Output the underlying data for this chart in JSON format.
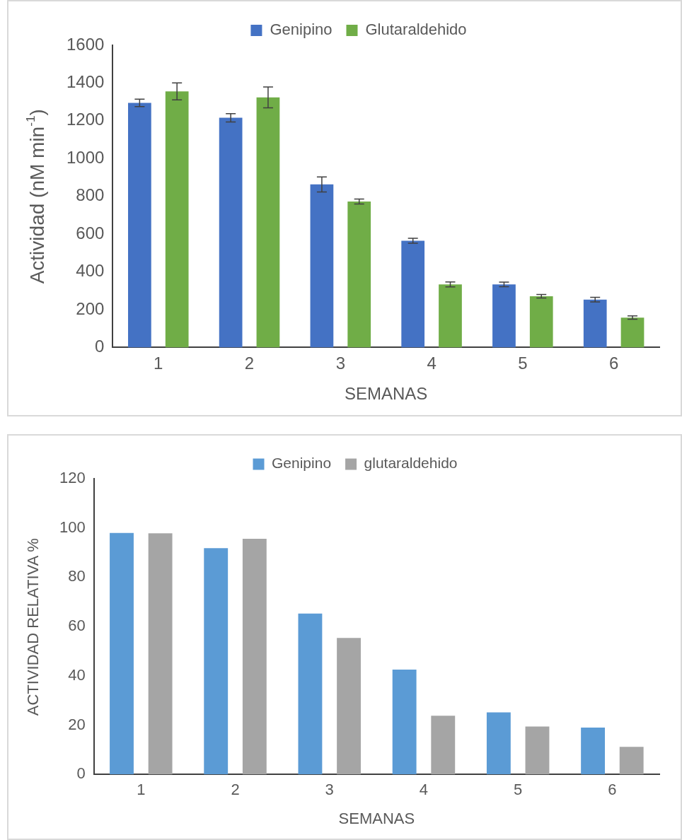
{
  "chart_data": [
    {
      "type": "bar",
      "categories": [
        "1",
        "2",
        "3",
        "4",
        "5",
        "6"
      ],
      "xlabel": "SEMANAS",
      "ylabel": "Actividad (nM min$^{-1}$)",
      "ylim": [
        0,
        1600
      ],
      "yticks": [
        0,
        200,
        400,
        600,
        800,
        1000,
        1200,
        1400,
        1600
      ],
      "grid": false,
      "legend": "top",
      "series": [
        {
          "name": "Genipino",
          "color": "#4472c4",
          "values": [
            1295,
            1216,
            863,
            565,
            334,
            253
          ],
          "errors": [
            20,
            22,
            40,
            13,
            12,
            12
          ]
        },
        {
          "name": "Glutaraldehido",
          "color": "#70ad47",
          "values": [
            1356,
            1324,
            773,
            334,
            271,
            158
          ],
          "errors": [
            45,
            55,
            13,
            13,
            9,
            9
          ]
        }
      ]
    },
    {
      "type": "bar",
      "categories": [
        "1",
        "2",
        "3",
        "4",
        "5",
        "6"
      ],
      "xlabel": "SEMANAS",
      "ylabel": "ACTIVIDAD RELATIVA %",
      "ylim": [
        0,
        120
      ],
      "yticks": [
        0,
        20,
        40,
        60,
        80,
        100,
        120
      ],
      "grid": false,
      "legend": "top",
      "series": [
        {
          "name": "Genipino",
          "color": "#5b9bd5",
          "values": [
            98,
            91.8,
            65.3,
            42.5,
            25.2,
            19
          ]
        },
        {
          "name": "glutaraldehido",
          "color": "#a5a5a5",
          "values": [
            97.8,
            95.6,
            55.4,
            23.8,
            19.4,
            11.2
          ]
        }
      ]
    }
  ]
}
